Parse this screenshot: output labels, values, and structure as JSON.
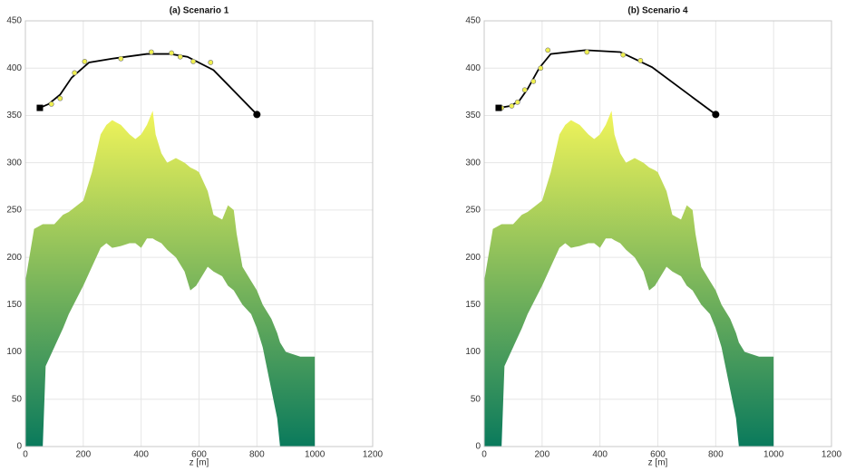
{
  "chart_data": [
    {
      "type": "line",
      "title": "(a) Scenario 1",
      "xlabel": "z [m]",
      "xlim": [
        0,
        1200
      ],
      "ylim": [
        0,
        450
      ],
      "xticks": [
        0,
        200,
        400,
        600,
        800,
        1000,
        1200
      ],
      "yticks": [
        0,
        50,
        100,
        150,
        200,
        250,
        300,
        350,
        400,
        450
      ],
      "grid": true,
      "area": {
        "gradient": [
          "#0a7a5c",
          "#f2f55a"
        ],
        "x": [
          0,
          30,
          60,
          70,
          100,
          130,
          150,
          200,
          230,
          260,
          280,
          300,
          330,
          360,
          380,
          400,
          420,
          440,
          450,
          470,
          490,
          520,
          550,
          570,
          590,
          600,
          630,
          650,
          680,
          700,
          720,
          730,
          750,
          780,
          800,
          820,
          850,
          870,
          880,
          900,
          950,
          1000
        ],
        "upper": [
          175,
          230,
          235,
          235,
          235,
          245,
          248,
          260,
          290,
          330,
          340,
          345,
          340,
          330,
          325,
          330,
          340,
          355,
          330,
          310,
          300,
          305,
          300,
          295,
          292,
          290,
          270,
          245,
          240,
          255,
          250,
          225,
          190,
          175,
          165,
          150,
          135,
          120,
          110,
          100,
          95,
          95
        ],
        "lower": [
          0,
          0,
          0,
          85,
          105,
          125,
          140,
          170,
          190,
          210,
          215,
          210,
          212,
          215,
          215,
          210,
          220,
          220,
          218,
          215,
          208,
          200,
          185,
          165,
          170,
          175,
          190,
          185,
          180,
          170,
          165,
          160,
          150,
          140,
          125,
          105,
          60,
          30,
          0,
          0,
          0,
          0
        ]
      },
      "path": {
        "color": "#000000",
        "x": [
          50,
          80,
          120,
          160,
          220,
          300,
          420,
          500,
          560,
          650,
          800
        ],
        "y": [
          358,
          362,
          372,
          390,
          406,
          410,
          415,
          415,
          412,
          398,
          351
        ]
      },
      "points": {
        "color": "#f0f050",
        "x": [
          90,
          120,
          170,
          205,
          330,
          435,
          505,
          535,
          580,
          640
        ],
        "y": [
          362,
          368,
          395,
          407,
          410,
          417,
          416,
          412,
          407,
          406
        ]
      },
      "start": {
        "x": 50,
        "y": 358
      },
      "end": {
        "x": 800,
        "y": 351
      }
    },
    {
      "type": "line",
      "title": "(b) Scenario 4",
      "xlabel": "z [m]",
      "xlim": [
        0,
        1200
      ],
      "ylim": [
        0,
        450
      ],
      "xticks": [
        0,
        200,
        400,
        600,
        800,
        1000,
        1200
      ],
      "yticks": [
        0,
        50,
        100,
        150,
        200,
        250,
        300,
        350,
        400,
        450
      ],
      "grid": true,
      "area": {
        "gradient": [
          "#0a7a5c",
          "#f2f55a"
        ],
        "x": [
          0,
          30,
          60,
          70,
          100,
          130,
          150,
          200,
          230,
          260,
          280,
          300,
          330,
          360,
          380,
          400,
          420,
          440,
          450,
          470,
          490,
          520,
          550,
          570,
          590,
          600,
          630,
          650,
          680,
          700,
          720,
          730,
          750,
          780,
          800,
          820,
          850,
          870,
          880,
          900,
          950,
          1000
        ],
        "upper": [
          175,
          230,
          235,
          235,
          235,
          245,
          248,
          260,
          290,
          330,
          340,
          345,
          340,
          330,
          325,
          330,
          340,
          355,
          330,
          310,
          300,
          305,
          300,
          295,
          292,
          290,
          270,
          245,
          240,
          255,
          250,
          225,
          190,
          175,
          165,
          150,
          135,
          120,
          110,
          100,
          95,
          95
        ],
        "lower": [
          0,
          0,
          0,
          85,
          105,
          125,
          140,
          170,
          190,
          210,
          215,
          210,
          212,
          215,
          215,
          210,
          220,
          220,
          218,
          215,
          208,
          200,
          185,
          165,
          170,
          175,
          190,
          185,
          180,
          170,
          165,
          160,
          150,
          140,
          125,
          105,
          60,
          30,
          0,
          0,
          0,
          0
        ]
      },
      "path": {
        "color": "#000000",
        "x": [
          50,
          90,
          120,
          150,
          190,
          230,
          350,
          470,
          580,
          800
        ],
        "y": [
          358,
          360,
          365,
          378,
          400,
          415,
          419,
          417,
          401,
          351
        ]
      },
      "points": {
        "color": "#f0f050",
        "x": [
          60,
          95,
          115,
          140,
          170,
          195,
          220,
          355,
          480,
          540
        ],
        "y": [
          358,
          360,
          364,
          377,
          386,
          400,
          419,
          417,
          414,
          408
        ]
      },
      "start": {
        "x": 50,
        "y": 358
      },
      "end": {
        "x": 800,
        "y": 351
      }
    }
  ]
}
